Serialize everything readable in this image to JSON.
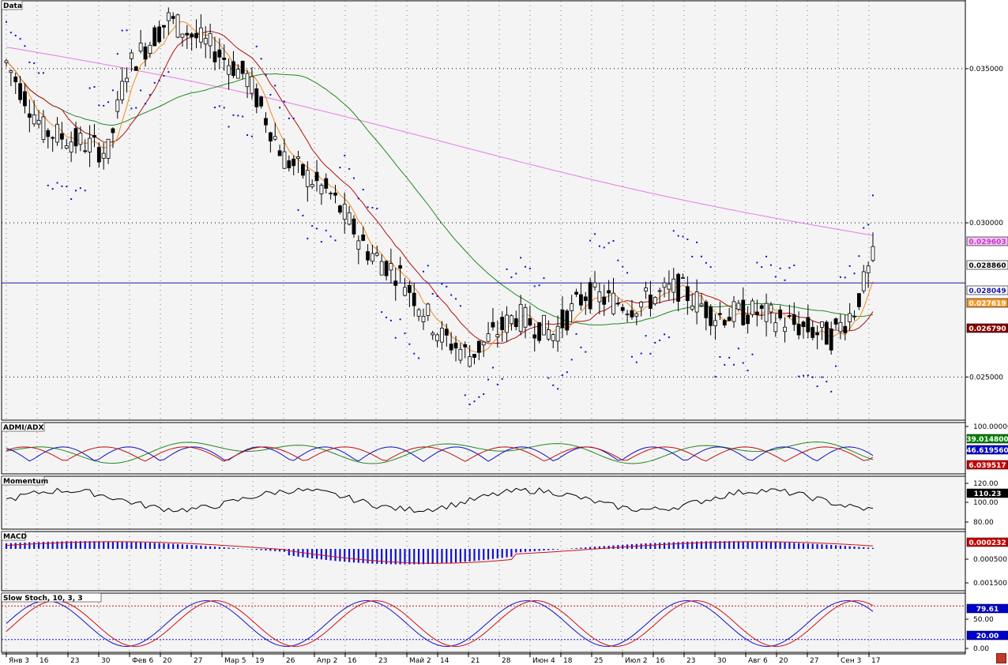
{
  "chart_data": {
    "type": "candlestick",
    "instrument_label": "Data",
    "price_axis_ticks": [
      "0.035000",
      "0.030000",
      "0.025000"
    ],
    "price_range": [
      0.0236,
      0.0372
    ],
    "price_badges": [
      {
        "text": "0.029603",
        "bg": "#f3c6f3",
        "fg": "#cc33cc"
      },
      {
        "text": "0.028860",
        "bg": "#ffffff",
        "fg": "#000000"
      },
      {
        "text": "0.028049",
        "bg": "#ffffff",
        "fg": "#1a1aa0"
      },
      {
        "text": "0.027619",
        "bg": "#f59a2a",
        "fg": "#ffffff"
      },
      {
        "text": "0.026790",
        "bg": "#8b0000",
        "fg": "#ffffff"
      }
    ],
    "horizontal_line": 0.028049,
    "x_labels": [
      "Янв 3",
      "16",
      "23",
      "30",
      "Фев 6",
      "20",
      "27",
      "Мар 5",
      "19",
      "26",
      "Апр 2",
      "16",
      "23",
      "Май 2",
      "14",
      "21",
      "28",
      "Июн 4",
      "18",
      "25",
      "Июл 2",
      "16",
      "23",
      "30",
      "Авг 6",
      "20",
      "27",
      "Сен 3",
      "17"
    ],
    "panels": [
      {
        "name": "ADMI/ADX",
        "ticks": [
          "100.000000"
        ],
        "values": [
          {
            "text": "39.014800",
            "bg": "#008000"
          },
          {
            "text": "46.619560",
            "bg": "#0000cc"
          },
          {
            "text": "6.039517",
            "bg": "#cc0000"
          }
        ]
      },
      {
        "name": "Momentum",
        "ticks": [
          "120.00",
          "100.00",
          "80.00"
        ],
        "values": [
          {
            "text": "110.23",
            "bg": "#000000"
          }
        ]
      },
      {
        "name": "MACD",
        "ticks": [
          "0.000500",
          "0.001500"
        ],
        "values": [
          {
            "text": "0.000232",
            "bg": "#cc0000"
          }
        ]
      },
      {
        "name": "Slow Stoch, 10, 3, 3",
        "ticks": [
          "50.00",
          "0.00"
        ],
        "values": [
          {
            "text": "79.61",
            "bg": "#0000cc"
          },
          {
            "text": "20.00",
            "bg": "#0000cc"
          }
        ]
      }
    ]
  }
}
